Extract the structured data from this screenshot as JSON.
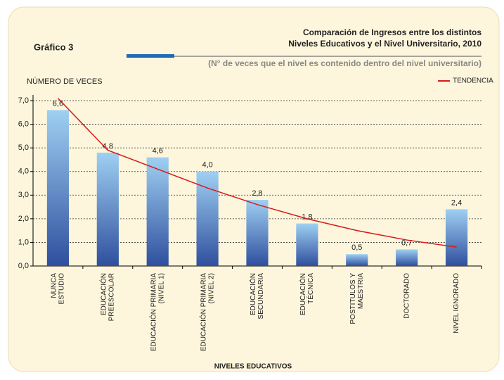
{
  "chart_data": {
    "type": "bar",
    "figure_label": "Gráfico 3",
    "title": [
      "Comparación de Ingresos entre los distintos",
      "Niveles Educativos y el Nivel Universitario, 2010"
    ],
    "subtitle": "(N° de veces que el nivel es contenido dentro del nivel universitario)",
    "y_label": "NÚMERO DE VECES",
    "x_label": "NIVELES EDUCATIVOS",
    "categories": [
      [
        "NUNCA",
        "ESTUDIO"
      ],
      [
        "EDUCACIÓN",
        "PREESCOLAR"
      ],
      [
        "EDUCACIÓN PRIMARIA",
        "(NIVEL 1)"
      ],
      [
        "EDUCACIÓN PRIMARIA",
        "(NIVEL 2)"
      ],
      [
        "EDUCACIÓN",
        "SECUNDARIA"
      ],
      [
        "EDUCACIÓN",
        "TÉCNICA"
      ],
      [
        "POSTITULOS Y",
        "MAESTRIA"
      ],
      [
        "DOCTORADO"
      ],
      [
        "NIVEL IGNORADO"
      ]
    ],
    "values": [
      6.6,
      4.8,
      4.6,
      4.0,
      2.8,
      1.8,
      0.5,
      0.7,
      2.4
    ],
    "value_labels": [
      "6,6",
      "4,8",
      "4,6",
      "4,0",
      "2,8",
      "1,8",
      "0,5",
      "0,7",
      "2,4"
    ],
    "color": [
      "#9fd0f2",
      "#2f4f9e"
    ],
    "trend": {
      "name": "TENDENCIA",
      "color": "#d7191c",
      "values": [
        7.1,
        4.9,
        4.1,
        3.3,
        2.6,
        2.0,
        1.5,
        1.1,
        0.8
      ]
    },
    "ylim": [
      0,
      7
    ],
    "yticks": [
      {
        "value": 0,
        "label": "0,0"
      },
      {
        "value": 1,
        "label": "1,0"
      },
      {
        "value": 2,
        "label": "2,0"
      },
      {
        "value": 3,
        "label": "3,0"
      },
      {
        "value": 4,
        "label": "4,0"
      },
      {
        "value": 5,
        "label": "5,0"
      },
      {
        "value": 6,
        "label": "6,0"
      },
      {
        "value": 7,
        "label": "7,0"
      }
    ],
    "grid": true,
    "legend": "top-right"
  }
}
